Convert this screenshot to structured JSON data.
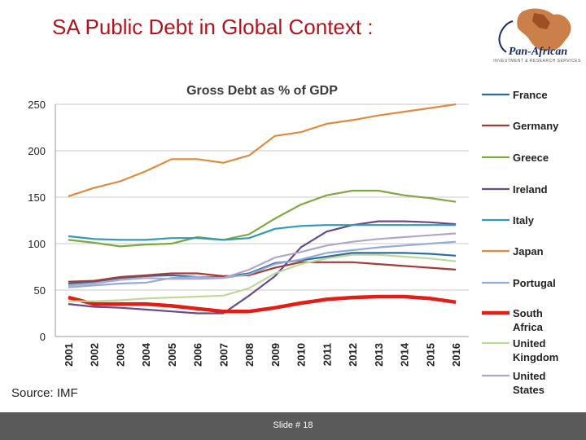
{
  "slide": {
    "title": "SA Public Debt in Global Context :",
    "source": "Source: IMF",
    "footer": "Slide # 18",
    "logo_name": "Pan-African",
    "logo_tagline": "INVESTMENT & RESEARCH SERVICES"
  },
  "chart_data": {
    "type": "line",
    "title": "Gross Debt as % of GDP",
    "xlabel": "",
    "ylabel": "",
    "ylim": [
      0,
      250
    ],
    "yticks": [
      0,
      50,
      100,
      150,
      200,
      250
    ],
    "grid": true,
    "legend_position": "right",
    "x": [
      "2001",
      "2002",
      "2003",
      "2004",
      "2005",
      "2006",
      "2007",
      "2008",
      "2009",
      "2010",
      "2011",
      "2012",
      "2013",
      "2014",
      "2015",
      "2016"
    ],
    "series": [
      {
        "name": "France",
        "color": "#2e6e9e",
        "values": [
          57,
          59,
          63,
          65,
          66,
          64,
          64,
          68,
          79,
          82,
          86,
          90,
          90,
          90,
          89,
          87
        ]
      },
      {
        "name": "Germany",
        "color": "#a83a36",
        "values": [
          59,
          60,
          64,
          66,
          68,
          68,
          65,
          66,
          74,
          80,
          80,
          80,
          78,
          76,
          74,
          72
        ]
      },
      {
        "name": "Greece",
        "color": "#80a842",
        "values": [
          104,
          101,
          97,
          99,
          100,
          107,
          104,
          110,
          127,
          142,
          152,
          157,
          157,
          152,
          149,
          145
        ]
      },
      {
        "name": "Ireland",
        "color": "#664a8a",
        "values": [
          35,
          32,
          31,
          29,
          27,
          25,
          25,
          44,
          65,
          96,
          113,
          120,
          124,
          124,
          123,
          121
        ]
      },
      {
        "name": "Italy",
        "color": "#2f9bb8",
        "values": [
          108,
          105,
          104,
          104,
          106,
          106,
          104,
          106,
          116,
          119,
          120,
          120,
          120,
          120,
          120,
          120
        ]
      },
      {
        "name": "Japan",
        "color": "#e08a3e",
        "values": [
          151,
          160,
          167,
          178,
          191,
          191,
          187,
          195,
          216,
          220,
          229,
          233,
          238,
          242,
          246,
          250
        ]
      },
      {
        "name": "Portugal",
        "color": "#94acd6",
        "values": [
          53,
          55,
          57,
          58,
          63,
          64,
          63,
          67,
          78,
          83,
          90,
          93,
          96,
          98,
          100,
          102
        ]
      },
      {
        "name": "South Africa",
        "color": "#e31c14",
        "values": [
          42,
          35,
          35,
          35,
          33,
          30,
          27,
          27,
          31,
          36,
          40,
          42,
          43,
          43,
          41,
          37
        ]
      },
      {
        "name": "United Kingdom",
        "color": "#bcd89a",
        "values": [
          38,
          38,
          39,
          41,
          42,
          43,
          44,
          52,
          68,
          78,
          84,
          88,
          88,
          86,
          84,
          81
        ]
      },
      {
        "name": "United States",
        "color": "#b2a6c8",
        "values": [
          55,
          57,
          61,
          63,
          62,
          62,
          63,
          72,
          85,
          91,
          98,
          102,
          105,
          107,
          109,
          111
        ]
      }
    ],
    "legend": [
      "France",
      "Germany",
      "Greece",
      "Ireland",
      "Italy",
      "Japan",
      "Portugal",
      "South Africa",
      "United Kingdom",
      "United States"
    ]
  }
}
